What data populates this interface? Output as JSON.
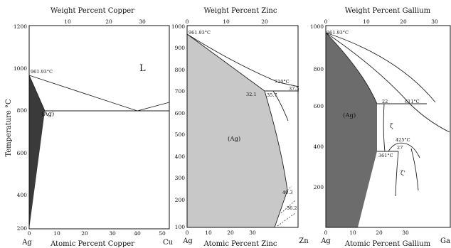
{
  "panels": [
    {
      "top_title": "Weight Percent Copper",
      "bottom_title": "Atomic Percent Copper",
      "ylabel": "Temperature °C",
      "y_ticks": [
        "1200",
        "1000",
        "800",
        "600",
        "400",
        "200"
      ],
      "top_ticks": [
        "10",
        "20",
        "30"
      ],
      "bottom_ticks": [
        "0",
        "10",
        "20",
        "30",
        "40",
        "50"
      ],
      "left_end": "Ag",
      "right_end": "Cu",
      "annotations": {
        "melting": "961.93°C",
        "liquid": "L",
        "phase": "(Ag)"
      }
    },
    {
      "top_title": "Weight Percent Zinc",
      "bottom_title": "Atomic Percent Zinc",
      "y_ticks": [
        "1000",
        "900",
        "800",
        "700",
        "600",
        "500",
        "400",
        "300",
        "200",
        "100"
      ],
      "top_ticks": [
        "0",
        "10",
        "20"
      ],
      "bottom_ticks": [
        "0",
        "10",
        "20",
        "30"
      ],
      "left_end": "Ag",
      "right_end": "Zn",
      "annotations": {
        "melting": "961.93°C",
        "t710": "710°C",
        "c375": "37.5",
        "c321": "32.1",
        "c357": "35.7",
        "phase": "(Ag)",
        "c403": "40.3",
        "c362": "36.2"
      }
    },
    {
      "top_title": "Weight Percent Gallium",
      "bottom_title": "Atomic Percent Gallium",
      "y_ticks": [
        "1000",
        "800",
        "600",
        "400",
        "200"
      ],
      "top_ticks": [
        "0",
        "10",
        "20",
        "30"
      ],
      "bottom_ticks": [
        "0",
        "10",
        "20",
        "30"
      ],
      "left_end": "Ag",
      "right_end": "Ga",
      "annotations": {
        "melting": "961.93°C",
        "c22": "22",
        "t611": "611°C",
        "zeta": "ζ",
        "t425": "425°C",
        "c27": "27",
        "t361": "361°C",
        "zeta_prime": "ζ'",
        "phase": "(Ag)"
      }
    }
  ],
  "colors": {
    "phase_dark": "#3a3a3a",
    "phase_light": "#c8c8c8",
    "phase_mid": "#6c6c6c"
  }
}
